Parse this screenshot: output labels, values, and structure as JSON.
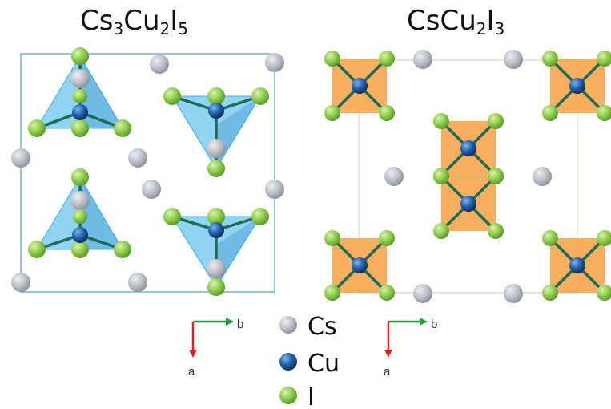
{
  "structures": [
    {
      "formula": "Cs",
      "sub1": "3",
      "mid": "Cu",
      "sub2": "2",
      "end": "I",
      "sub3": "5"
    },
    {
      "formula": "CsCu",
      "sub1": "2",
      "mid": "I",
      "sub2": "3"
    }
  ],
  "axes": {
    "horizontal": "b",
    "vertical": "a"
  },
  "legend": [
    {
      "label": "Cs",
      "atom": "cs"
    },
    {
      "label": "Cu",
      "atom": "cu"
    },
    {
      "label": "I",
      "atom": "i"
    }
  ],
  "colors": {
    "cs": "#b9bcc4",
    "cu": "#1f5fa8",
    "i": "#8fcc4a",
    "tetrahedron": "#3aaee8",
    "octahedron": "#f7a64b",
    "cell1": "#6fb3d6",
    "cell2": "#d6ddd0",
    "bond": "#1e6a5a",
    "arrow_b": "#1fa040",
    "arrow_a": "#e02020"
  }
}
